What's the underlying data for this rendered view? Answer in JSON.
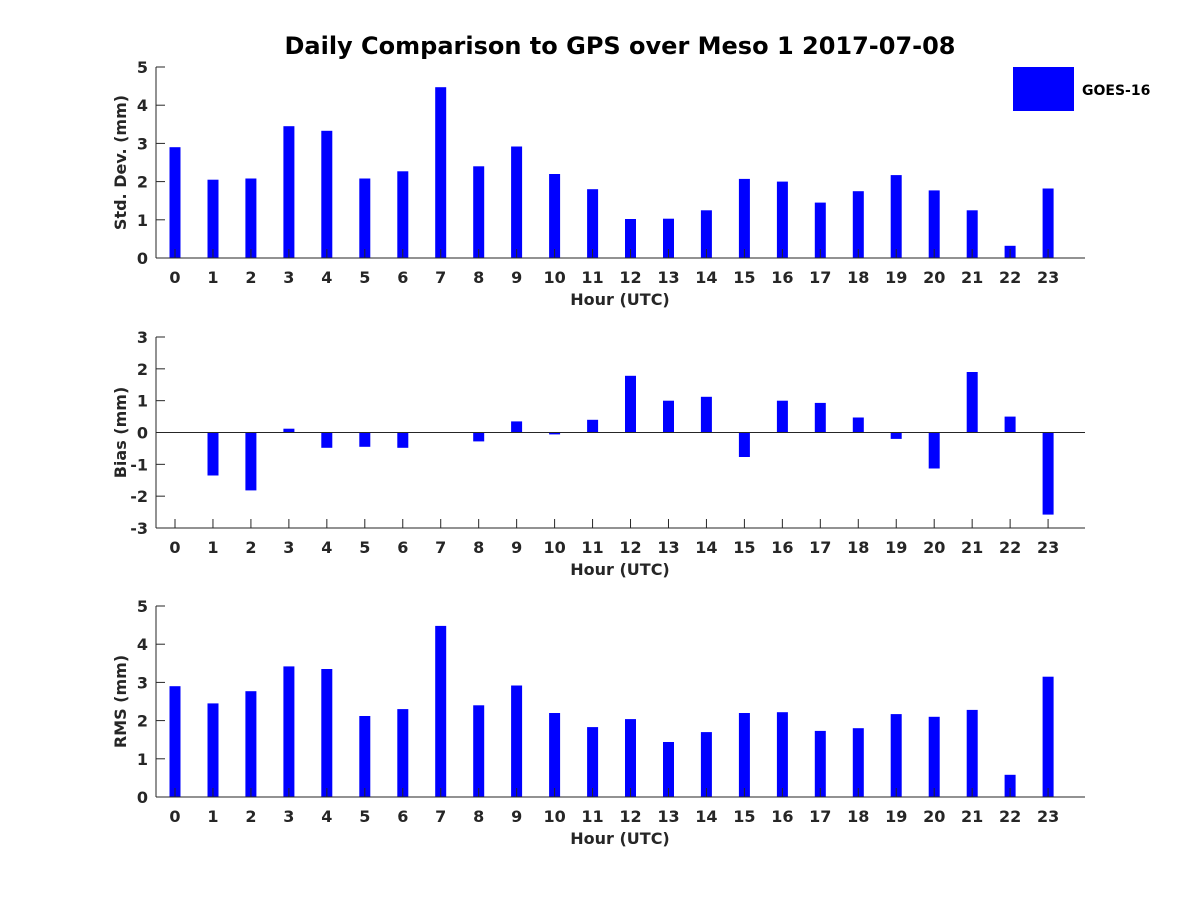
{
  "title": "Daily Comparison to GPS over Meso 1 2017-07-08",
  "legend": {
    "label": "GOES-16",
    "placement": "top-right",
    "color": "#0000ff"
  },
  "chart_data": [
    {
      "type": "bar",
      "name": "std-dev",
      "title": "",
      "xlabel": "Hour (UTC)",
      "ylabel": "Std. Dev. (mm)",
      "ylim": [
        0,
        5
      ],
      "yticks": [
        0,
        1,
        2,
        3,
        4,
        5
      ],
      "categories": [
        "0",
        "1",
        "2",
        "3",
        "4",
        "5",
        "6",
        "7",
        "8",
        "9",
        "10",
        "11",
        "12",
        "13",
        "14",
        "15",
        "16",
        "17",
        "18",
        "19",
        "20",
        "21",
        "22",
        "23"
      ],
      "series": [
        {
          "name": "GOES-16",
          "color": "#0000ff",
          "values": [
            2.9,
            2.05,
            2.08,
            3.45,
            3.33,
            2.08,
            2.27,
            4.47,
            2.4,
            2.92,
            2.2,
            1.8,
            1.02,
            1.03,
            1.25,
            2.07,
            2.0,
            1.45,
            1.75,
            2.17,
            1.77,
            1.25,
            0.32,
            1.82
          ]
        }
      ]
    },
    {
      "type": "bar",
      "name": "bias",
      "title": "",
      "xlabel": "Hour (UTC)",
      "ylabel": "Bias (mm)",
      "ylim": [
        -3,
        3
      ],
      "yticks": [
        -3,
        -2,
        -1,
        0,
        1,
        2,
        3
      ],
      "categories": [
        "0",
        "1",
        "2",
        "3",
        "4",
        "5",
        "6",
        "7",
        "8",
        "9",
        "10",
        "11",
        "12",
        "13",
        "14",
        "15",
        "16",
        "17",
        "18",
        "19",
        "20",
        "21",
        "22",
        "23"
      ],
      "series": [
        {
          "name": "GOES-16",
          "color": "#0000ff",
          "values": [
            0.0,
            -1.35,
            -1.82,
            0.12,
            -0.48,
            -0.45,
            -0.48,
            0.0,
            -0.28,
            0.35,
            -0.06,
            0.4,
            1.78,
            1.0,
            1.12,
            -0.77,
            1.0,
            0.93,
            0.47,
            -0.2,
            -1.13,
            1.9,
            0.5,
            -2.58
          ]
        }
      ]
    },
    {
      "type": "bar",
      "name": "rms",
      "title": "",
      "xlabel": "Hour (UTC)",
      "ylabel": "RMS (mm)",
      "ylim": [
        0,
        5
      ],
      "yticks": [
        0,
        1,
        2,
        3,
        4,
        5
      ],
      "categories": [
        "0",
        "1",
        "2",
        "3",
        "4",
        "5",
        "6",
        "7",
        "8",
        "9",
        "10",
        "11",
        "12",
        "13",
        "14",
        "15",
        "16",
        "17",
        "18",
        "19",
        "20",
        "21",
        "22",
        "23"
      ],
      "series": [
        {
          "name": "GOES-16",
          "color": "#0000ff",
          "values": [
            2.9,
            2.45,
            2.77,
            3.42,
            3.35,
            2.12,
            2.3,
            4.48,
            2.4,
            2.92,
            2.2,
            1.83,
            2.04,
            1.44,
            1.7,
            2.2,
            2.22,
            1.73,
            1.8,
            2.17,
            2.1,
            2.28,
            0.58,
            3.15
          ]
        }
      ]
    }
  ]
}
